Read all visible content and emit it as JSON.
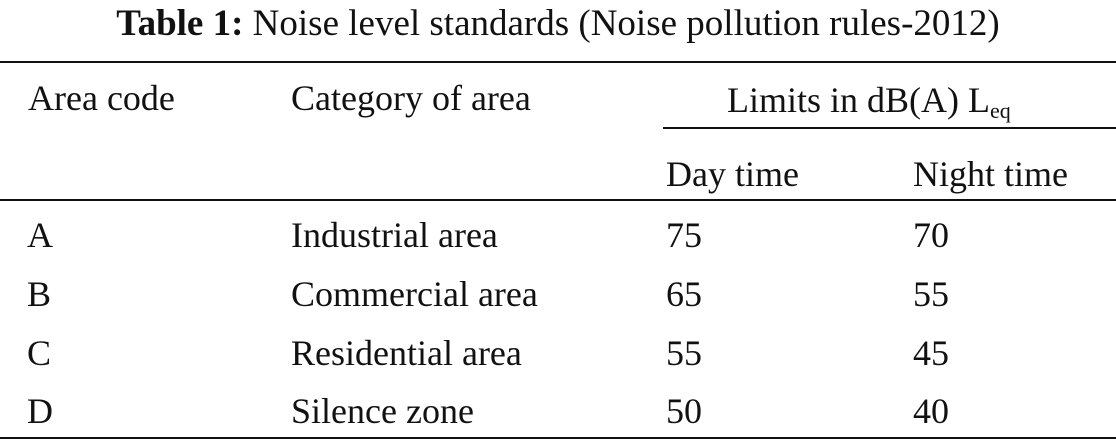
{
  "caption": {
    "label": "Table 1:",
    "text": "Noise level standards (Noise pollution rules-2012)"
  },
  "table": {
    "headers": {
      "area_code": "Area code",
      "category": "Category of area",
      "limits_main": "Limits in dB(A) L",
      "limits_sub": "eq",
      "day": "Day time",
      "night": "Night time"
    },
    "rows": [
      {
        "code": "A",
        "category": "Industrial area",
        "day": "75",
        "night": "70"
      },
      {
        "code": "B",
        "category": "Commercial area",
        "day": "65",
        "night": "55"
      },
      {
        "code": "C",
        "category": "Residential area",
        "day": "55",
        "night": "45"
      },
      {
        "code": "D",
        "category": "Silence zone",
        "day": "50",
        "night": "40"
      }
    ]
  }
}
